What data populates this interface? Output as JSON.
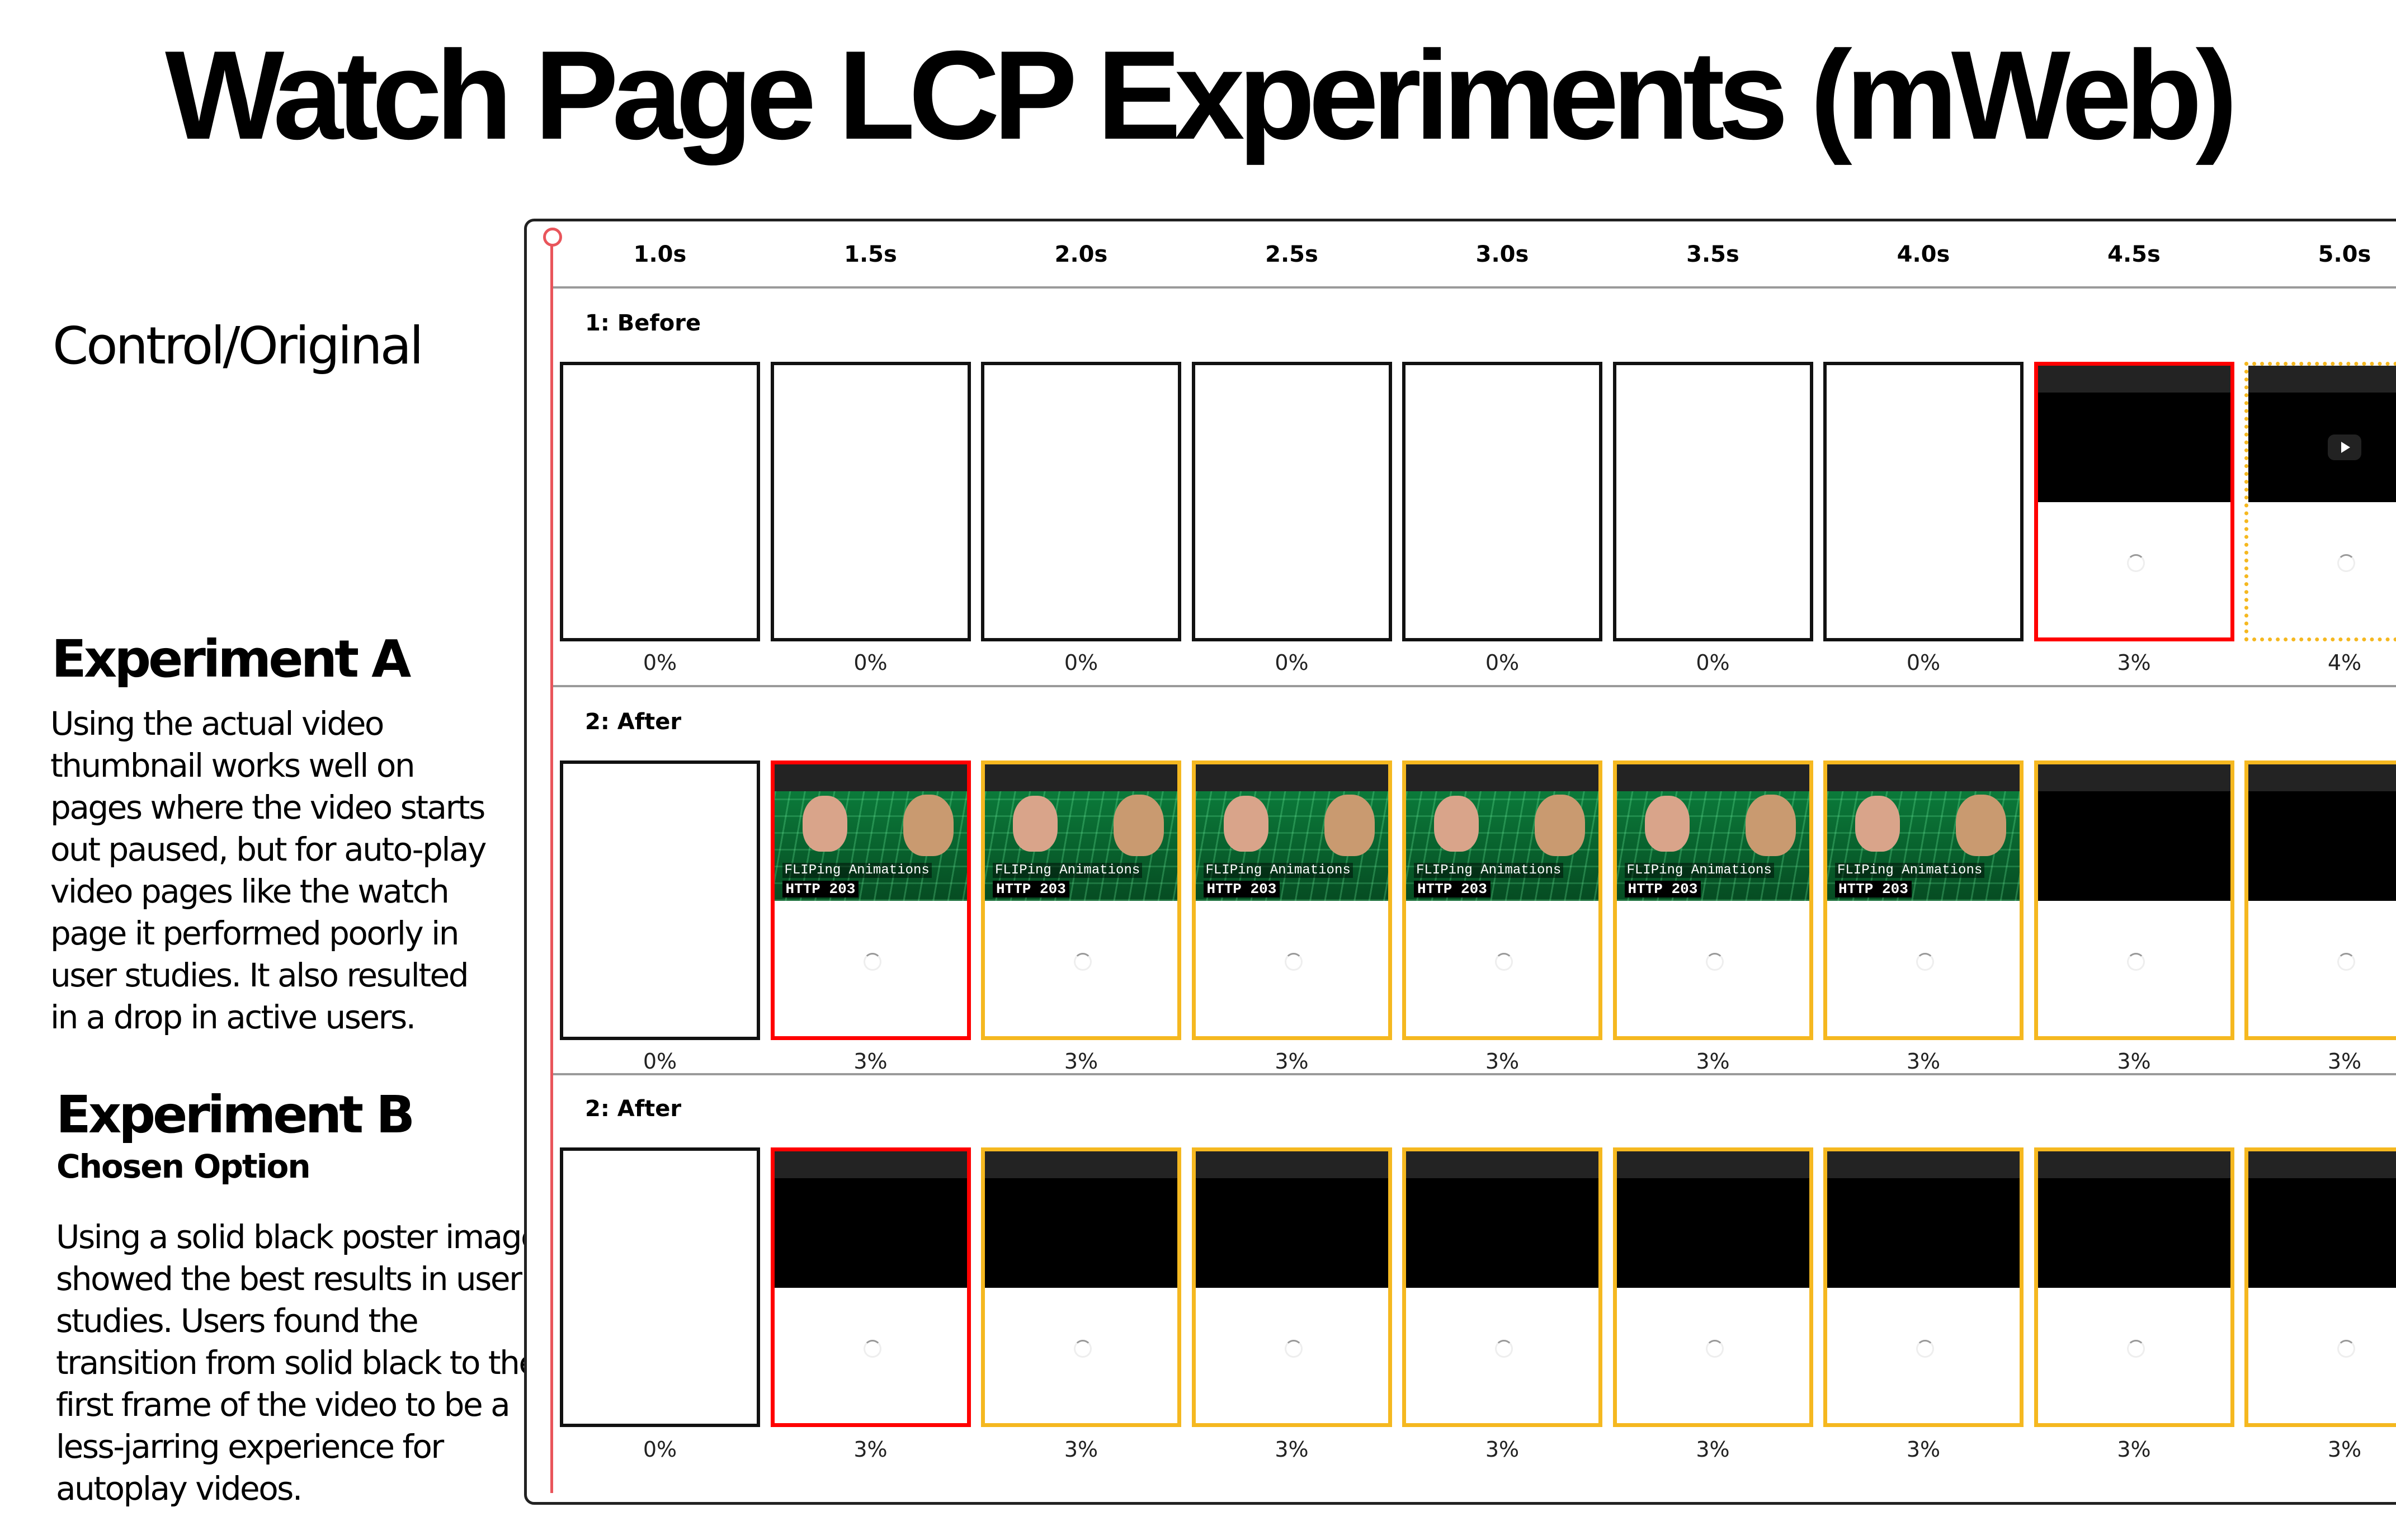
{
  "title": "Watch Page LCP Experiments (mWeb)",
  "left": {
    "control_heading": "Control/Original",
    "exp_a_heading": "Experiment A",
    "exp_a_lines": [
      "Using the actual video",
      "thumbnail works well on",
      "pages where the video starts",
      "out paused, but for auto-play",
      "video pages like the watch",
      "page it performed poorly in",
      "user studies. It also resulted",
      "in a drop in active users."
    ],
    "exp_b_heading": "Experiment B",
    "exp_b_sub": "Chosen Option",
    "exp_b_lines": [
      "Using a solid black poster image",
      "showed the best results in user",
      "studies. Users found the",
      "transition from solid black to the",
      "first frame of the video to be a",
      "less-jarring experience for",
      "autoplay videos."
    ]
  },
  "colors": {
    "timeline": "#e9555b",
    "lcp_changed": "#ff0000",
    "visual_change": "#f5b820",
    "no_change": "#111111"
  },
  "timeline": {
    "ticks": [
      "1.0s",
      "1.5s",
      "2.0s",
      "2.5s",
      "3.0s",
      "3.5s",
      "4.0s",
      "4.5s",
      "5.0s"
    ]
  },
  "thumbnail": {
    "title": "FLIPing Animations",
    "subtitle": "HTTP 203"
  },
  "rows": [
    {
      "label": "1: Before",
      "frames": [
        {
          "content": "blank",
          "border": "black",
          "pct": "0%"
        },
        {
          "content": "blank",
          "border": "black",
          "pct": "0%"
        },
        {
          "content": "blank",
          "border": "black",
          "pct": "0%"
        },
        {
          "content": "blank",
          "border": "black",
          "pct": "0%"
        },
        {
          "content": "blank",
          "border": "black",
          "pct": "0%"
        },
        {
          "content": "blank",
          "border": "black",
          "pct": "0%"
        },
        {
          "content": "blank",
          "border": "black",
          "pct": "0%"
        },
        {
          "content": "black-poster",
          "border": "red",
          "pct": "3%"
        },
        {
          "content": "black-poster-play",
          "border": "yellow-dotted",
          "pct": "4%"
        }
      ]
    },
    {
      "label": "2: After",
      "frames": [
        {
          "content": "blank",
          "border": "black",
          "pct": "0%"
        },
        {
          "content": "thumbnail",
          "border": "red",
          "pct": "3%"
        },
        {
          "content": "thumbnail",
          "border": "yellow",
          "pct": "3%"
        },
        {
          "content": "thumbnail",
          "border": "yellow",
          "pct": "3%"
        },
        {
          "content": "thumbnail",
          "border": "yellow",
          "pct": "3%"
        },
        {
          "content": "thumbnail",
          "border": "yellow",
          "pct": "3%"
        },
        {
          "content": "thumbnail",
          "border": "yellow",
          "pct": "3%"
        },
        {
          "content": "black-poster",
          "border": "yellow",
          "pct": "3%"
        },
        {
          "content": "black-poster",
          "border": "yellow",
          "pct": "3%"
        }
      ]
    },
    {
      "label": "2: After",
      "frames": [
        {
          "content": "blank",
          "border": "black",
          "pct": "0%"
        },
        {
          "content": "black-poster",
          "border": "red",
          "pct": "3%"
        },
        {
          "content": "black-poster",
          "border": "yellow",
          "pct": "3%"
        },
        {
          "content": "black-poster",
          "border": "yellow",
          "pct": "3%"
        },
        {
          "content": "black-poster",
          "border": "yellow",
          "pct": "3%"
        },
        {
          "content": "black-poster",
          "border": "yellow",
          "pct": "3%"
        },
        {
          "content": "black-poster",
          "border": "yellow",
          "pct": "3%"
        },
        {
          "content": "black-poster",
          "border": "yellow",
          "pct": "3%"
        },
        {
          "content": "black-poster",
          "border": "yellow",
          "pct": "3%"
        }
      ]
    }
  ]
}
